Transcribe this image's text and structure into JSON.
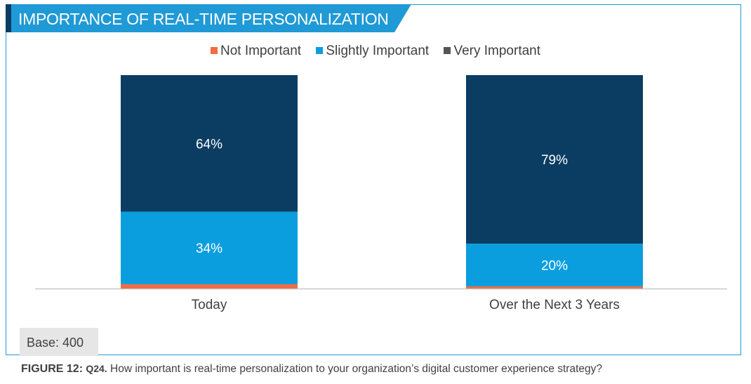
{
  "header": {
    "title": "IMPORTANCE OF REAL-TIME PERSONALIZATION"
  },
  "colors": {
    "frame": "#1f9ad6",
    "title_bar": "#1f9ad6",
    "title_accent": "#0b3d63"
  },
  "chart_data": {
    "type": "bar",
    "stacked": true,
    "categories": [
      "Today",
      "Over the Next 3 Years"
    ],
    "series": [
      {
        "name": "Not Important",
        "color": "#f26b43",
        "values": [
          2,
          1
        ],
        "labels": [
          "",
          ""
        ]
      },
      {
        "name": "Slightly Important",
        "color": "#0a9edf",
        "values": [
          34,
          20
        ],
        "labels": [
          "34%",
          "20%"
        ]
      },
      {
        "name": "Very Important",
        "color": "#0b3d63",
        "values": [
          64,
          79
        ],
        "labels": [
          "64%",
          "79%"
        ]
      }
    ],
    "ylim": [
      0,
      100
    ],
    "legend_position": "top-center",
    "grid": false
  },
  "footer": {
    "base": "Base: 400",
    "figure_label": "FIGURE 12:",
    "question_label": "Q24.",
    "question_text": "How important is real-time personalization to your organization’s digital customer experience strategy?"
  }
}
